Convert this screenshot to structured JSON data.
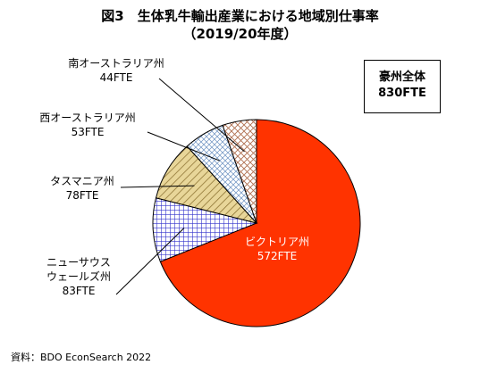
{
  "title": "図3　生体乳牛輸出産業における地域別仕事率",
  "subtitle": "（2019/20年度）",
  "total": {
    "label": "豪州全体",
    "value": "830FTE"
  },
  "source": "資料：BDO EconSearch 2022",
  "chart_data": {
    "type": "pie",
    "title": "図3　生体乳牛輸出産業における地域別仕事率",
    "subtitle": "（2019/20年度）",
    "unit": "FTE",
    "slices": [
      {
        "name": "ビクトリア州",
        "value": 572,
        "value_label": "572FTE",
        "color": "#ff3300",
        "pattern": "solid"
      },
      {
        "name": "ニューサウスウェールズ州",
        "name_lines": [
          "ニューサウス",
          "ウェールズ州"
        ],
        "value": 83,
        "value_label": "83FTE",
        "color": "#3333cc",
        "pattern": "grid"
      },
      {
        "name": "タスマニア州",
        "value": 78,
        "value_label": "78FTE",
        "color": "#d9c27a",
        "pattern": "diagonal-fill"
      },
      {
        "name": "西オーストラリア州",
        "value": 53,
        "value_label": "53FTE",
        "color": "#6a8fc0",
        "pattern": "cross-dots"
      },
      {
        "name": "南オーストラリア州",
        "value": 44,
        "value_label": "44FTE",
        "color": "#b07050",
        "pattern": "diagonal-cross"
      }
    ]
  }
}
